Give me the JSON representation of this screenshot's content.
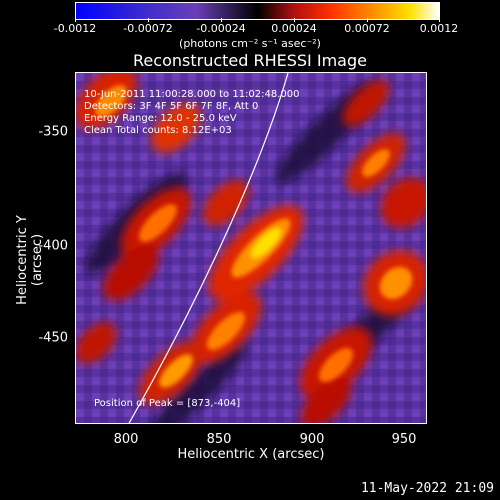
{
  "colorbar": {
    "ticks": [
      "-0.0012",
      "-0.00072",
      "-0.00024",
      "0.00024",
      "0.00072",
      "0.0012"
    ],
    "units": "(photons cm⁻² s⁻¹ asec⁻²)"
  },
  "image": {
    "title": "Reconstructed RHESSI Image",
    "annotations": {
      "time_range": "10-Jun-2011 11:00:28.000 to 11:02:48.000",
      "detectors": "Detectors: 3F 4F 5F 6F 7F 8F, Att 0",
      "energy": "Energy Range: 12.0 - 25.0 keV",
      "method": "Clean     Total counts: 8.12E+03",
      "peak": "Position of Peak = [873,-404]"
    },
    "xlabel": "Heliocentric X (arcsec)",
    "ylabel": "Heliocentric Y (arcsec)",
    "xticks": [
      "800",
      "850",
      "900",
      "950"
    ],
    "yticks": [
      "-350",
      "-400",
      "-450"
    ]
  },
  "footer": {
    "date": "11-May-2022 21:09"
  }
}
